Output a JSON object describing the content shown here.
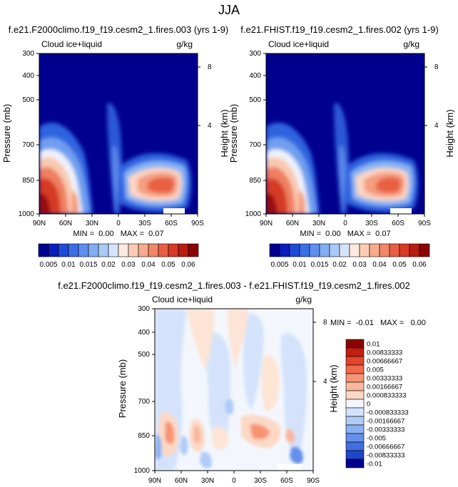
{
  "page_title": "JJA",
  "chart_data": [
    {
      "type": "heatmap",
      "panel": "top-left",
      "title": "f.e21.F2000climo.f19_f19.cesm2_1.fires.003 (yrs 1-9)",
      "left_label": "Cloud ice+liquid",
      "right_label": "g/kg",
      "ylabel": "Pressure (mb)",
      "y2label": "Height (km)",
      "xlim": [
        90,
        -90
      ],
      "ylim": [
        1000,
        300
      ],
      "x_ticks": [
        "90N",
        "60N",
        "30N",
        "0",
        "30S",
        "60S",
        "90S"
      ],
      "y_ticks": [
        "300",
        "400",
        "500",
        "700",
        "850",
        "1000"
      ],
      "y2_ticks": [
        "8",
        "4"
      ],
      "stats": "MIN =  0.00   MAX =  0.07",
      "features": [
        {
          "lat": 82,
          "p": 960,
          "value": 0.07
        },
        {
          "lat": 72,
          "p": 850,
          "value": 0.05
        },
        {
          "lat": 55,
          "p": 880,
          "value": 0.03
        },
        {
          "lat": 42,
          "p": 905,
          "value": 0.015
        },
        {
          "lat": -40,
          "p": 840,
          "value": 0.045
        },
        {
          "lat": -20,
          "p": 815,
          "value": 0.035
        },
        {
          "lat": -58,
          "p": 855,
          "value": 0.04
        },
        {
          "lat": 0,
          "p": 780,
          "value": 0.01
        }
      ]
    },
    {
      "type": "heatmap",
      "panel": "top-right",
      "title": "f.e21.FHIST.f19_f19.cesm2_1.fires.002 (yrs 1-9)",
      "left_label": "Cloud ice+liquid",
      "right_label": "g/kg",
      "ylabel": "Pressure (mb)",
      "y2label": "Height (km)",
      "xlim": [
        90,
        -90
      ],
      "ylim": [
        1000,
        300
      ],
      "x_ticks": [
        "90N",
        "60N",
        "30N",
        "0",
        "30S",
        "60S",
        "90S"
      ],
      "y_ticks": [
        "300",
        "400",
        "500",
        "700",
        "850",
        "1000"
      ],
      "y2_ticks": [
        "8",
        "4"
      ],
      "stats": "MIN =  0.00   MAX =  0.07",
      "features": [
        {
          "lat": 82,
          "p": 960,
          "value": 0.07
        },
        {
          "lat": 72,
          "p": 850,
          "value": 0.05
        },
        {
          "lat": 55,
          "p": 880,
          "value": 0.03
        },
        {
          "lat": 42,
          "p": 905,
          "value": 0.015
        },
        {
          "lat": -40,
          "p": 840,
          "value": 0.045
        },
        {
          "lat": -20,
          "p": 815,
          "value": 0.035
        },
        {
          "lat": -58,
          "p": 855,
          "value": 0.04
        },
        {
          "lat": 0,
          "p": 780,
          "value": 0.01
        }
      ]
    },
    {
      "type": "heatmap",
      "panel": "bottom-difference",
      "title": "f.e21.F2000climo.f19_f19.cesm2_1.fires.003 - f.e21.FHIST.f19_f19.cesm2_1.fires.002",
      "left_label": "Cloud ice+liquid",
      "right_label": "g/kg",
      "ylabel": "Pressure (mb)",
      "y2label": "Height (km)",
      "xlim": [
        90,
        -90
      ],
      "ylim": [
        1000,
        300
      ],
      "x_ticks": [
        "90N",
        "60N",
        "30N",
        "0",
        "30S",
        "60S",
        "90S"
      ],
      "y_ticks": [
        "300",
        "400",
        "500",
        "700",
        "850",
        "1000"
      ],
      "y2_ticks": [
        "8",
        "4"
      ],
      "stats": "MIN =  -0.01   MAX =   0.00",
      "features": [
        {
          "lat": 70,
          "p": 840,
          "value": 0.0017
        },
        {
          "lat": 45,
          "p": 850,
          "value": 0.0017
        },
        {
          "lat": -30,
          "p": 820,
          "value": 0.0017
        },
        {
          "lat": -55,
          "p": 850,
          "value": 0.0008
        },
        {
          "lat": 80,
          "p": 900,
          "value": -0.0017
        },
        {
          "lat": -70,
          "p": 950,
          "value": -0.0025
        },
        {
          "lat": 10,
          "p": 600,
          "value": 0.0008
        },
        {
          "lat": -15,
          "p": 450,
          "value": -0.0008
        }
      ]
    }
  ],
  "colorbar_top": {
    "colors": [
      "#00008f",
      "#0a1dbd",
      "#1d4bd8",
      "#3a6ee6",
      "#5c8fef",
      "#82aef3",
      "#a9c9f6",
      "#d5e4fa",
      "#fde9de",
      "#fbccb3",
      "#f7ab8b",
      "#f18766",
      "#e85e43",
      "#d83a26",
      "#b81c12",
      "#8b0303"
    ],
    "labels": [
      "0.005",
      "0.01",
      "0.015",
      "0.02",
      "0.03",
      "0.04",
      "0.05",
      "0.06"
    ]
  },
  "colorbar_bottom": {
    "colors": [
      "#8b0303",
      "#c31d14",
      "#e2442c",
      "#f06a4d",
      "#f69474",
      "#f9b79d",
      "#fcd8c5",
      "#f3f7fd",
      "#d4e3fb",
      "#b0ccf7",
      "#8ab0f1",
      "#6590ea",
      "#416ee0",
      "#1f47c9",
      "#00008f"
    ],
    "labels": [
      "0.01",
      "0.00833333",
      "0.00666667",
      "0.005",
      "0.00333333",
      "0.00166667",
      "0.000833333",
      "0",
      "-0.000833333",
      "-0.00166667",
      "-0.00333333",
      "-0.005",
      "-0.00666667",
      "-0.00833333",
      "-0.01"
    ]
  }
}
